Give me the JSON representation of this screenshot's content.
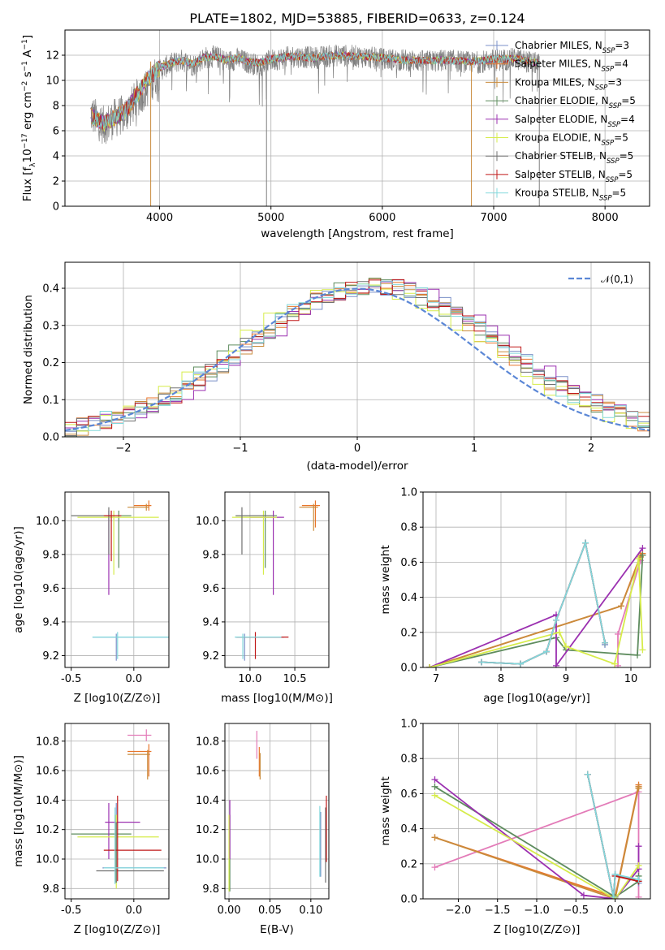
{
  "title": "PLATE=1802, MJD=53885, FIBERID=0633, z=0.124",
  "series": [
    {
      "name": "Chabrier MILES",
      "nssp": "3",
      "color": "#7b90c8"
    },
    {
      "name": "Salpeter MILES",
      "nssp": "4",
      "color": "#e8762b"
    },
    {
      "name": "Kroupa MILES",
      "nssp": "3",
      "color": "#c98b3c"
    },
    {
      "name": "Chabrier ELODIE",
      "nssp": "5",
      "color": "#5e8c5e"
    },
    {
      "name": "Salpeter ELODIE",
      "nssp": "4",
      "color": "#9b30b0"
    },
    {
      "name": "Kroupa ELODIE",
      "nssp": "5",
      "color": "#d6ec4a"
    },
    {
      "name": "Chabrier STELIB",
      "nssp": "5",
      "color": "#707070"
    },
    {
      "name": "Salpeter STELIB",
      "nssp": "5",
      "color": "#c01818"
    },
    {
      "name": "Kroupa STELIB",
      "nssp": "5",
      "color": "#82d8dc"
    }
  ],
  "chart_data": [
    {
      "id": "spectrum",
      "type": "line",
      "xlabel": "wavelength [Angstrom, rest frame]",
      "ylabel": "Flux [f_λ 10^-17 erg cm^-2 s^-1 A^-1]",
      "xlim": [
        3150,
        8400
      ],
      "ylim": [
        0,
        14
      ],
      "xticks": [
        4000,
        5000,
        6000,
        7000,
        8000
      ],
      "yticks": [
        0,
        2,
        4,
        6,
        8,
        10,
        12
      ],
      "data_x": [
        3300,
        3400,
        3500,
        3600,
        3700,
        3800,
        3900,
        4000,
        4100,
        4200,
        4300,
        4400,
        4500,
        4600,
        4700,
        4800,
        4900,
        5000,
        5200,
        5400,
        5600,
        5800,
        6000,
        6200,
        6400,
        6600,
        6800,
        7000,
        7200,
        7400
      ],
      "data_y": [
        7.8,
        7.2,
        6.4,
        7.0,
        7.4,
        8.6,
        9.6,
        10.8,
        11.3,
        11.6,
        11.2,
        11.8,
        11.9,
        11.5,
        11.7,
        11.4,
        11.2,
        11.6,
        11.9,
        11.8,
        12.0,
        11.9,
        11.7,
        11.6,
        11.5,
        11.6,
        11.4,
        11.6,
        11.7,
        11.3
      ],
      "model_y": [
        7.5,
        7.1,
        6.6,
        7.1,
        7.6,
        8.9,
        10.2,
        11.0,
        11.4,
        11.6,
        11.3,
        11.8,
        11.9,
        11.6,
        11.8,
        11.5,
        11.4,
        11.7,
        11.9,
        11.8,
        12.0,
        11.9,
        11.8,
        11.6,
        11.6,
        11.6,
        11.5,
        11.7,
        11.7,
        11.4
      ]
    },
    {
      "id": "residuals",
      "type": "histogram",
      "xlabel": "(data-model)/error",
      "ylabel": "Normed distribution",
      "xlim": [
        -2.5,
        2.5
      ],
      "ylim": [
        0,
        0.47
      ],
      "xticks": [
        -2,
        -1,
        0,
        1,
        2
      ],
      "yticks": [
        0.0,
        0.1,
        0.2,
        0.3,
        0.4
      ],
      "bin_width": 0.1,
      "normal_label": "𝒩(0,1)",
      "normal_color": "#5b87d6"
    },
    {
      "id": "age-vs-Z",
      "type": "errorbar",
      "xlabel": "Z [log10(Z/Z⊙)]",
      "ylabel": "age  [log10(age/yr)]",
      "xlim": [
        -0.55,
        0.28
      ],
      "ylim": [
        9.13,
        10.17
      ],
      "xticks": [
        -0.5,
        0.0
      ],
      "yticks": [
        9.2,
        9.4,
        9.6,
        9.8,
        10.0
      ],
      "points": [
        {
          "s": 0,
          "x": -0.14,
          "y": 9.31,
          "xlo": -0.33,
          "xhi": 0.3,
          "ylo": 9.17,
          "yhi": 9.33
        },
        {
          "s": 1,
          "x": 0.12,
          "y": 10.09,
          "xlo": 0.0,
          "xhi": 0.14,
          "ylo": 10.06,
          "yhi": 10.12
        },
        {
          "s": 2,
          "x": 0.1,
          "y": 10.08,
          "xlo": -0.05,
          "xhi": 0.12,
          "ylo": 10.06,
          "yhi": 10.1
        },
        {
          "s": 3,
          "x": -0.12,
          "y": 10.03,
          "xlo": -0.5,
          "xhi": -0.02,
          "ylo": 9.72,
          "yhi": 10.06
        },
        {
          "s": 4,
          "x": -0.2,
          "y": 10.03,
          "xlo": -0.23,
          "xhi": -0.18,
          "ylo": 9.56,
          "yhi": 10.06
        },
        {
          "s": 5,
          "x": -0.16,
          "y": 10.02,
          "xlo": -0.45,
          "xhi": 0.2,
          "ylo": 9.68,
          "yhi": 10.06
        },
        {
          "s": 6,
          "x": -0.2,
          "y": 10.03,
          "xlo": -0.5,
          "xhi": -0.15,
          "ylo": 9.8,
          "yhi": 10.08
        },
        {
          "s": 7,
          "x": -0.18,
          "y": 10.03,
          "xlo": -0.24,
          "xhi": -0.1,
          "ylo": 9.76,
          "yhi": 10.06
        },
        {
          "s": 8,
          "x": -0.13,
          "y": 9.31,
          "xlo": -0.33,
          "xhi": 0.3,
          "ylo": 9.18,
          "yhi": 9.34
        }
      ]
    },
    {
      "id": "age-vs-mass",
      "type": "errorbar",
      "xlabel": "mass [log10(M/M⊙)]",
      "ylabel": "",
      "xlim": [
        9.72,
        10.88
      ],
      "ylim": [
        9.13,
        10.17
      ],
      "xticks": [
        10.0,
        10.5
      ],
      "yticks": [
        9.2,
        9.4,
        9.6,
        9.8,
        10.0
      ],
      "points": [
        {
          "s": 0,
          "x": 9.94,
          "y": 9.31,
          "xlo": 9.84,
          "xhi": 10.38,
          "ylo": 9.17,
          "yhi": 9.33
        },
        {
          "s": 1,
          "x": 10.73,
          "y": 10.09,
          "xlo": 10.58,
          "xhi": 10.78,
          "ylo": 9.96,
          "yhi": 10.12
        },
        {
          "s": 2,
          "x": 10.71,
          "y": 10.08,
          "xlo": 10.55,
          "xhi": 10.76,
          "ylo": 9.94,
          "yhi": 10.1
        },
        {
          "s": 3,
          "x": 10.17,
          "y": 10.03,
          "xlo": 9.84,
          "xhi": 10.3,
          "ylo": 9.72,
          "yhi": 10.06
        },
        {
          "s": 4,
          "x": 10.26,
          "y": 10.02,
          "xlo": 10.0,
          "xhi": 10.38,
          "ylo": 9.56,
          "yhi": 10.06
        },
        {
          "s": 5,
          "x": 10.15,
          "y": 10.02,
          "xlo": 9.8,
          "xhi": 10.3,
          "ylo": 9.68,
          "yhi": 10.06
        },
        {
          "s": 6,
          "x": 9.91,
          "y": 10.03,
          "xlo": 9.84,
          "xhi": 10.25,
          "ylo": 9.8,
          "yhi": 10.08
        },
        {
          "s": 7,
          "x": 10.06,
          "y": 9.31,
          "xlo": 9.85,
          "xhi": 10.43,
          "ylo": 9.18,
          "yhi": 9.34
        },
        {
          "s": 8,
          "x": 9.92,
          "y": 9.31,
          "xlo": 9.83,
          "xhi": 10.35,
          "ylo": 9.18,
          "yhi": 9.33
        }
      ]
    },
    {
      "id": "weight-vs-age",
      "type": "line",
      "xlabel": "age  [log10(age/yr)]",
      "ylabel": "mass weight",
      "xlim": [
        6.8,
        10.3
      ],
      "ylim": [
        0,
        1
      ],
      "xticks": [
        7,
        8,
        9,
        10
      ],
      "yticks": [
        0.0,
        0.2,
        0.4,
        0.6,
        0.8,
        1.0
      ],
      "lines": [
        {
          "s": 0,
          "x": [
            7.7,
            8.3,
            8.7,
            8.85,
            9.3,
            9.6,
            9.6
          ],
          "y": [
            0.03,
            0.02,
            0.09,
            0.27,
            0.71,
            0.14,
            0.13
          ]
        },
        {
          "s": 1,
          "x": [
            6.9,
            9.85,
            10.15,
            10.18
          ],
          "y": [
            0.0,
            0.35,
            0.64,
            0.65
          ]
        },
        {
          "s": 2,
          "x": [
            6.9,
            9.85,
            10.15,
            10.18
          ],
          "y": [
            0.0,
            0.35,
            0.63,
            0.64
          ]
        },
        {
          "s": 3,
          "x": [
            6.9,
            8.85,
            9.0,
            10.1,
            10.18
          ],
          "y": [
            0.0,
            0.17,
            0.1,
            0.07,
            0.64
          ]
        },
        {
          "s": 4,
          "x": [
            6.9,
            8.85,
            8.85,
            10.18
          ],
          "y": [
            0.0,
            0.3,
            0.01,
            0.68
          ]
        },
        {
          "s": 5,
          "x": [
            6.9,
            8.9,
            9.0,
            9.75,
            10.12,
            10.18
          ],
          "y": [
            0.0,
            0.2,
            0.12,
            0.02,
            0.62,
            0.1
          ]
        },
        {
          "s": 6,
          "x": [
            7.7,
            8.3,
            8.7,
            8.85,
            9.3,
            9.6
          ],
          "y": [
            0.03,
            0.02,
            0.09,
            0.27,
            0.71,
            0.14
          ]
        },
        {
          "s": 7,
          "x": [
            7.7,
            8.3,
            8.7,
            8.85,
            9.3,
            9.6
          ],
          "y": [
            0.03,
            0.02,
            0.09,
            0.27,
            0.71,
            0.14
          ]
        },
        {
          "s": 8,
          "x": [
            7.7,
            8.3,
            8.7,
            8.85,
            9.3,
            9.6
          ],
          "y": [
            0.03,
            0.02,
            0.09,
            0.27,
            0.71,
            0.14
          ]
        }
      ],
      "extra": [
        {
          "color": "#e37bb8",
          "x": [
            9.8,
            9.8,
            10.15
          ],
          "y": [
            0.01,
            0.19,
            0.61
          ]
        }
      ]
    },
    {
      "id": "mass-vs-Z",
      "type": "errorbar",
      "xlabel": "Z [log10(Z/Z⊙)]",
      "ylabel": "mass [log10(M/M⊙)]",
      "xlim": [
        -0.55,
        0.28
      ],
      "ylim": [
        9.73,
        10.92
      ],
      "xticks": [
        -0.5,
        0.0
      ],
      "yticks": [
        9.8,
        10.0,
        10.2,
        10.4,
        10.6,
        10.8
      ],
      "points": [
        {
          "s": 0,
          "x": -0.14,
          "y": 9.94,
          "xlo": -0.25,
          "xhi": 0.26,
          "ylo": 9.84,
          "yhi": 10.38
        },
        {
          "s": 1,
          "x": 0.12,
          "y": 10.73,
          "xlo": -0.05,
          "xhi": 0.14,
          "ylo": 10.56,
          "yhi": 10.78
        },
        {
          "s": 2,
          "x": 0.11,
          "y": 10.71,
          "xlo": -0.05,
          "xhi": 0.13,
          "ylo": 10.54,
          "yhi": 10.74
        },
        {
          "s": 3,
          "x": -0.15,
          "y": 10.17,
          "xlo": -0.5,
          "xhi": -0.02,
          "ylo": 9.84,
          "yhi": 10.3
        },
        {
          "s": 4,
          "x": -0.2,
          "y": 10.25,
          "xlo": -0.23,
          "xhi": 0.05,
          "ylo": 10.0,
          "yhi": 10.38
        },
        {
          "s": 5,
          "x": -0.14,
          "y": 10.15,
          "xlo": -0.45,
          "xhi": 0.2,
          "ylo": 9.8,
          "yhi": 10.3
        },
        {
          "s": 6,
          "x": -0.14,
          "y": 9.92,
          "xlo": -0.3,
          "xhi": 0.24,
          "ylo": 9.84,
          "yhi": 10.25
        },
        {
          "s": 7,
          "x": -0.13,
          "y": 10.06,
          "xlo": -0.24,
          "xhi": 0.22,
          "ylo": 9.85,
          "yhi": 10.43
        },
        {
          "s": 8,
          "x": -0.15,
          "y": 9.94,
          "xlo": -0.24,
          "xhi": 0.24,
          "ylo": 9.83,
          "yhi": 10.35
        },
        {
          "s": 10,
          "x": 0.1,
          "y": 10.84,
          "xlo": -0.05,
          "xhi": 0.14,
          "ylo": 10.8,
          "yhi": 10.88
        }
      ]
    },
    {
      "id": "mass-vs-EBV",
      "type": "errorbar",
      "xlabel": "E(B-V)",
      "ylabel": "",
      "xlim": [
        -0.005,
        0.122
      ],
      "ylim": [
        9.73,
        10.92
      ],
      "xticks": [
        0.0,
        0.05,
        0.1
      ],
      "yticks": [
        9.8,
        10.0,
        10.2,
        10.4,
        10.6,
        10.8
      ],
      "points": [
        {
          "s": 0,
          "x": 0.112,
          "y": 10.05,
          "xlo": 0.112,
          "xhi": 0.112,
          "ylo": 9.88,
          "yhi": 10.32
        },
        {
          "s": 1,
          "x": 0.037,
          "y": 10.66,
          "xlo": 0.037,
          "xhi": 0.037,
          "ylo": 10.56,
          "yhi": 10.76
        },
        {
          "s": 2,
          "x": 0.038,
          "y": 10.64,
          "xlo": 0.038,
          "xhi": 0.038,
          "ylo": 10.54,
          "yhi": 10.72
        },
        {
          "s": 3,
          "x": 0.001,
          "y": 10.05,
          "xlo": 0.001,
          "xhi": 0.001,
          "ylo": 9.78,
          "yhi": 10.3
        },
        {
          "s": 4,
          "x": 0.001,
          "y": 10.2,
          "xlo": 0.001,
          "xhi": 0.001,
          "ylo": 10.0,
          "yhi": 10.4
        },
        {
          "s": 5,
          "x": 0.0,
          "y": 10.05,
          "xlo": 0.0,
          "xhi": 0.0,
          "ylo": 9.78,
          "yhi": 10.3
        },
        {
          "s": 6,
          "x": 0.118,
          "y": 10.05,
          "xlo": 0.118,
          "xhi": 0.118,
          "ylo": 9.84,
          "yhi": 10.35
        },
        {
          "s": 7,
          "x": 0.119,
          "y": 10.2,
          "xlo": 0.119,
          "xhi": 0.119,
          "ylo": 9.98,
          "yhi": 10.43
        },
        {
          "s": 8,
          "x": 0.111,
          "y": 10.0,
          "xlo": 0.111,
          "xhi": 0.111,
          "ylo": 9.88,
          "yhi": 10.36
        },
        {
          "s": 10,
          "x": 0.034,
          "y": 10.78,
          "xlo": 0.034,
          "xhi": 0.034,
          "ylo": 10.68,
          "yhi": 10.87
        }
      ]
    },
    {
      "id": "weight-vs-Z",
      "type": "line",
      "xlabel": "Z [log10(Z/Z⊙)]",
      "ylabel": "mass weight",
      "xlim": [
        -2.45,
        0.45
      ],
      "ylim": [
        0,
        1
      ],
      "xticks": [
        -2.0,
        -1.5,
        -1.0,
        -0.5,
        0.0
      ],
      "yticks": [
        0.0,
        0.2,
        0.4,
        0.6,
        0.8,
        1.0
      ],
      "lines": [
        {
          "s": 0,
          "x": [
            -0.35,
            -0.02,
            0.0,
            0.3,
            0.3
          ],
          "y": [
            0.71,
            0.01,
            0.14,
            0.1,
            0.09
          ]
        },
        {
          "s": 1,
          "x": [
            -2.3,
            0.0,
            0.3,
            0.3
          ],
          "y": [
            0.35,
            0.01,
            0.65,
            0.64
          ]
        },
        {
          "s": 2,
          "x": [
            -2.3,
            0.0,
            0.3,
            0.3
          ],
          "y": [
            0.35,
            0.0,
            0.64,
            0.63
          ]
        },
        {
          "s": 3,
          "x": [
            -2.3,
            0.0,
            0.3,
            0.3
          ],
          "y": [
            0.64,
            0.01,
            0.1,
            0.13
          ]
        },
        {
          "s": 4,
          "x": [
            -2.3,
            -0.4,
            0.0,
            0.3,
            0.3
          ],
          "y": [
            0.68,
            0.02,
            0.0,
            0.17,
            0.3
          ]
        },
        {
          "s": 5,
          "x": [
            -2.3,
            0.0,
            0.3
          ],
          "y": [
            0.59,
            0.0,
            0.19
          ]
        },
        {
          "s": 6,
          "x": [
            -0.35,
            -0.02,
            0.0,
            0.3
          ],
          "y": [
            0.71,
            0.01,
            0.14,
            0.1
          ]
        },
        {
          "s": 7,
          "x": [
            -0.35,
            -0.02,
            0.0,
            0.3
          ],
          "y": [
            0.71,
            0.01,
            0.13,
            0.1
          ]
        },
        {
          "s": 8,
          "x": [
            -0.35,
            -0.02,
            0.0,
            0.3
          ],
          "y": [
            0.71,
            0.01,
            0.14,
            0.11
          ]
        }
      ],
      "extra": [
        {
          "color": "#e37bb8",
          "x": [
            -2.3,
            0.3,
            0.3
          ],
          "y": [
            0.18,
            0.61,
            0.01
          ]
        }
      ]
    }
  ]
}
